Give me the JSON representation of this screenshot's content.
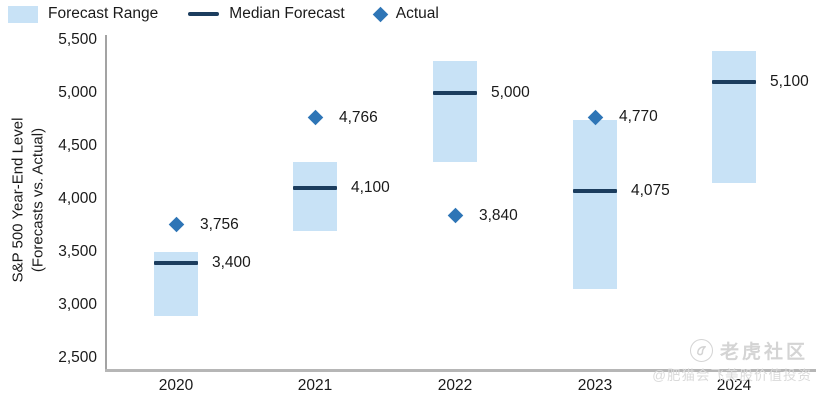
{
  "legend": {
    "items": [
      {
        "label": "Forecast Range",
        "swatch": "range-rect"
      },
      {
        "label": "Median Forecast",
        "swatch": "dark-line"
      },
      {
        "label": "Actual",
        "swatch": "diamond"
      }
    ]
  },
  "y_axis": {
    "title_line1": "S&P 500 Year-End Level",
    "title_line2": "(Forecasts vs. Actual)",
    "tick_labels": [
      "5,500",
      "5,000",
      "4,500",
      "4,000",
      "3,500",
      "3,000",
      "2,500"
    ],
    "tick_values": [
      5500,
      5000,
      4500,
      4000,
      3500,
      3000,
      2500
    ]
  },
  "chart_data": {
    "type": "bar",
    "variant": "floating range bars with median tick and actual diamond markers",
    "categories": [
      "2020",
      "2021",
      "2022",
      "2023",
      "2024"
    ],
    "series": [
      {
        "name": "Forecast Range",
        "low": [
          2900,
          3700,
          4350,
          3150,
          4150
        ],
        "high": [
          3500,
          4350,
          5300,
          4750,
          5400
        ]
      },
      {
        "name": "Median Forecast",
        "values": [
          3400,
          4100,
          5000,
          4075,
          5100
        ]
      },
      {
        "name": "Actual",
        "values": [
          3756,
          4766,
          3840,
          4770,
          null
        ]
      }
    ],
    "value_labels": {
      "median": [
        "3,400",
        "4,100",
        "5,000",
        "4,075",
        "5,100"
      ],
      "actual": [
        "3,756",
        "4,766",
        "3,840",
        "4,770",
        ""
      ]
    },
    "title": "",
    "xlabel": "",
    "ylabel": "S&P 500 Year-End Level (Forecasts vs. Actual)",
    "ylim": [
      2500,
      5500
    ],
    "grid": false,
    "legend_position": "top-left"
  },
  "colors": {
    "range_fill": "#C8E2F6",
    "median_line": "#1C3D5E",
    "actual_diamond": "#2E75B6",
    "axis_line": "#A8A8A8",
    "text": "#1A1A1A",
    "watermark": "#D6D6D6"
  },
  "watermark": {
    "brand": "老虎社区",
    "handle": "@肥猫会飞美股价值投资"
  }
}
